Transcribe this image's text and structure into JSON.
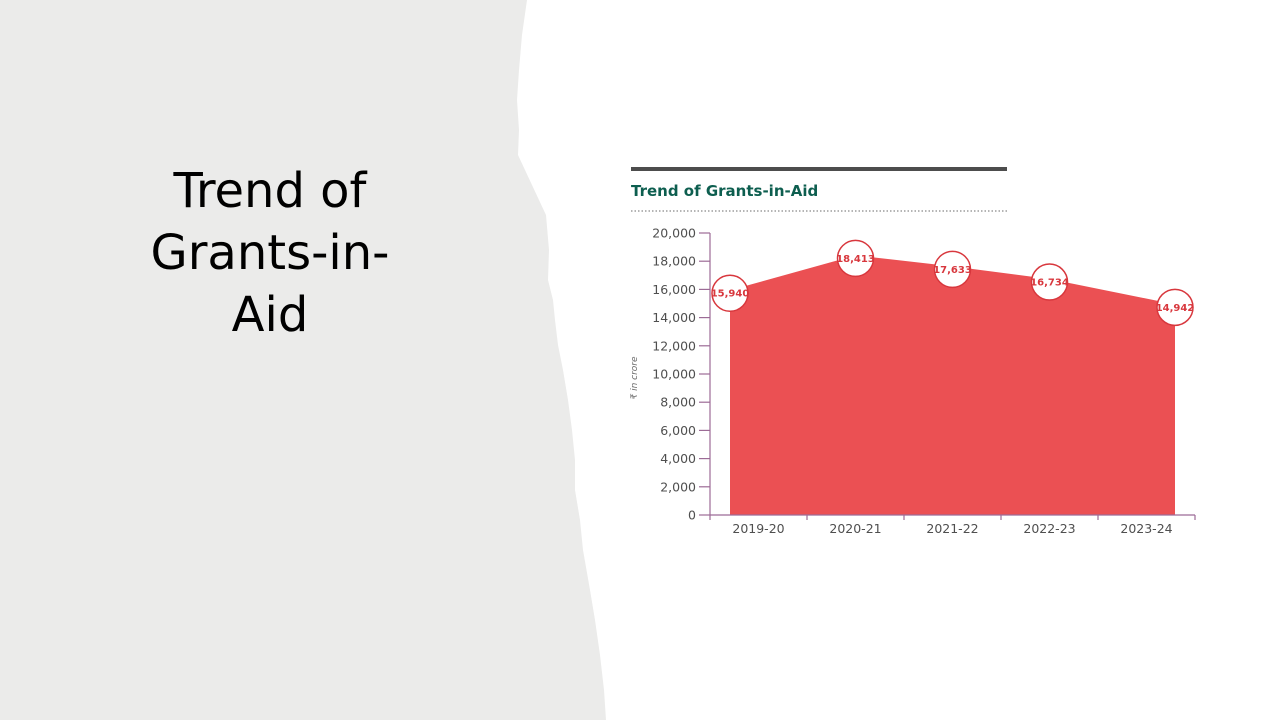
{
  "slide": {
    "title_lines": [
      "Trend of",
      "Grants-in-",
      "Aid"
    ]
  },
  "colors": {
    "left_panel": "#ebebea",
    "area_fill": "#eb5053",
    "marker_stroke": "#d8373d",
    "chart_title": "#0d5e4f",
    "axis": "#9c6b96",
    "top_rule": "#4d4d4d",
    "tick_text": "#4f4f4f"
  },
  "chart_data": {
    "type": "area",
    "title": "Trend of Grants-in-Aid",
    "ylabel": "₹ in crore",
    "xlabel": "",
    "categories": [
      "2019-20",
      "2020-21",
      "2021-22",
      "2022-23",
      "2023-24"
    ],
    "values": [
      15940,
      18413,
      17633,
      16734,
      14942
    ],
    "data_labels": [
      "15,940",
      "18,413",
      "17,633",
      "16,734",
      "14,942"
    ],
    "ylim": [
      0,
      20000
    ],
    "yticks": [
      0,
      2000,
      4000,
      6000,
      8000,
      10000,
      12000,
      14000,
      16000,
      18000,
      20000
    ],
    "ytick_labels": [
      "0",
      "2,000",
      "4,000",
      "6,000",
      "8,000",
      "10,000",
      "12,000",
      "14,000",
      "16,000",
      "18,000",
      "20,000"
    ],
    "grid": false,
    "legend": "none"
  }
}
